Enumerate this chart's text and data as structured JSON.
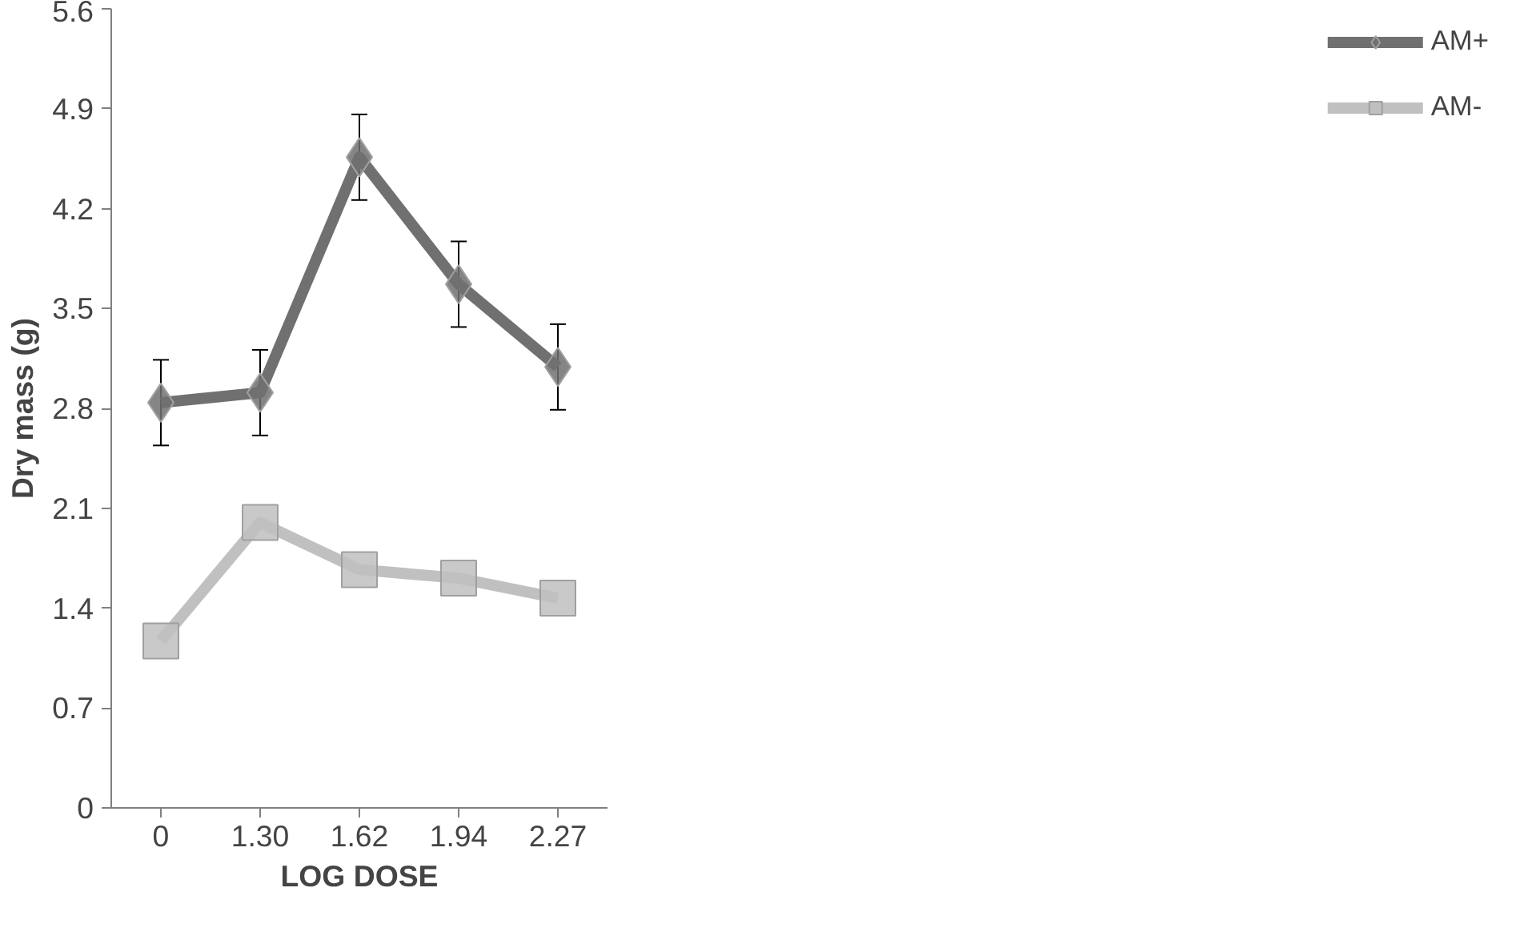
{
  "chart_data": {
    "type": "line",
    "xlabel": "LOG DOSE",
    "ylabel": "Dry mass (g)",
    "categories": [
      "0",
      "1.30",
      "1.62",
      "1.94",
      "2.27"
    ],
    "series": [
      {
        "name": "AM+",
        "color": "#707070",
        "marker": "diamond",
        "values": [
          2.84,
          2.91,
          4.56,
          3.67,
          3.09
        ],
        "errors": [
          0.3,
          0.3,
          0.3,
          0.3,
          0.3
        ]
      },
      {
        "name": "AM-",
        "color": "#c0c0c0",
        "marker": "square",
        "values": [
          1.17,
          2.0,
          1.67,
          1.61,
          1.47
        ]
      }
    ],
    "ylim": [
      0,
      5.6
    ],
    "yticks": [
      0,
      0.7,
      1.4,
      2.1,
      2.8,
      3.5,
      4.2,
      4.9,
      5.6
    ],
    "grid": false,
    "legend": "right",
    "line_style": "solid"
  }
}
